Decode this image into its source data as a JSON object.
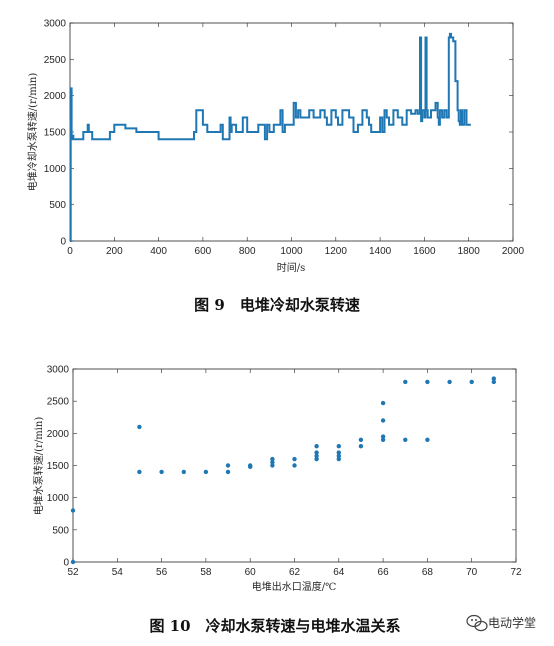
{
  "chart_data": [
    {
      "type": "line",
      "xlabel": "时间/s",
      "ylabel": "电堆冷却水泵转速/(r/min)",
      "xlim": [
        0,
        2000
      ],
      "ylim": [
        0,
        3000
      ],
      "xticks": [
        "0",
        "200",
        "400",
        "600",
        "800",
        "1000",
        "1200",
        "1400",
        "1600",
        "1800",
        "2000"
      ],
      "yticks": [
        "0",
        "500",
        "1000",
        "1500",
        "2000",
        "2500",
        "3000"
      ],
      "color": "#1f77b4",
      "x": [
        0,
        3,
        5,
        7,
        10,
        12,
        15,
        20,
        60,
        80,
        85,
        100,
        140,
        180,
        200,
        250,
        300,
        350,
        400,
        500,
        540,
        560,
        570,
        600,
        620,
        680,
        690,
        720,
        725,
        730,
        750,
        780,
        800,
        850,
        880,
        890,
        900,
        920,
        950,
        960,
        970,
        1000,
        1010,
        1020,
        1030,
        1040,
        1060,
        1080,
        1100,
        1130,
        1150,
        1160,
        1180,
        1200,
        1210,
        1230,
        1260,
        1280,
        1300,
        1320,
        1340,
        1350,
        1360,
        1380,
        1400,
        1410,
        1420,
        1430,
        1440,
        1460,
        1480,
        1500,
        1520,
        1540,
        1560,
        1570,
        1580,
        1585,
        1590,
        1600,
        1605,
        1610,
        1615,
        1630,
        1650,
        1660,
        1665,
        1670,
        1680,
        1690,
        1700,
        1710,
        1715,
        1720,
        1730,
        1740,
        1750,
        1755,
        1760,
        1765,
        1770,
        1780,
        1790,
        1800,
        1810
      ],
      "y": [
        0,
        1650,
        2100,
        1400,
        1400,
        1450,
        1400,
        1400,
        1500,
        1600,
        1500,
        1400,
        1400,
        1500,
        1600,
        1550,
        1500,
        1500,
        1400,
        1400,
        1400,
        1500,
        1800,
        1600,
        1500,
        1600,
        1400,
        1700,
        1500,
        1600,
        1500,
        1700,
        1500,
        1600,
        1400,
        1600,
        1500,
        1600,
        1800,
        1500,
        1600,
        1600,
        1900,
        1700,
        1800,
        1700,
        1700,
        1800,
        1700,
        1800,
        1700,
        1600,
        1800,
        1700,
        1600,
        1800,
        1700,
        1500,
        1600,
        1800,
        1700,
        1600,
        1500,
        1500,
        1700,
        1500,
        1800,
        1700,
        1600,
        1800,
        1700,
        1600,
        1800,
        1750,
        1800,
        1750,
        2800,
        1650,
        1800,
        1700,
        2800,
        1800,
        1700,
        1800,
        1900,
        1700,
        1600,
        1800,
        1700,
        1800,
        1700,
        2800,
        2850,
        2800,
        2750,
        2200,
        1800,
        1650,
        1600,
        1800,
        1600,
        1800,
        1600,
        1600,
        1600
      ]
    },
    {
      "type": "scatter",
      "xlabel": "电堆出水口温度/℃",
      "ylabel": "电堆水泵转速/(r/min)",
      "xlim": [
        52,
        72
      ],
      "ylim": [
        0,
        3000
      ],
      "xticks": [
        "52",
        "54",
        "56",
        "58",
        "60",
        "62",
        "64",
        "66",
        "68",
        "70",
        "72"
      ],
      "yticks": [
        "0",
        "500",
        "1000",
        "1500",
        "2000",
        "2500",
        "3000"
      ],
      "color": "#1f77b4",
      "points": [
        [
          52,
          0
        ],
        [
          52,
          800
        ],
        [
          55,
          2100
        ],
        [
          55,
          1400
        ],
        [
          56,
          1400
        ],
        [
          57,
          1400
        ],
        [
          58,
          1400
        ],
        [
          59,
          1400
        ],
        [
          59,
          1500
        ],
        [
          60,
          1500
        ],
        [
          60,
          1480
        ],
        [
          61,
          1500
        ],
        [
          61,
          1550
        ],
        [
          61,
          1600
        ],
        [
          62,
          1500
        ],
        [
          62,
          1600
        ],
        [
          63,
          1600
        ],
        [
          63,
          1650
        ],
        [
          63,
          1700
        ],
        [
          63,
          1800
        ],
        [
          64,
          1600
        ],
        [
          64,
          1650
        ],
        [
          64,
          1700
        ],
        [
          64,
          1800
        ],
        [
          65,
          1800
        ],
        [
          65,
          1900
        ],
        [
          66,
          1900
        ],
        [
          66,
          1950
        ],
        [
          66,
          2200
        ],
        [
          66,
          2470
        ],
        [
          67,
          1900
        ],
        [
          67,
          2800
        ],
        [
          68,
          1900
        ],
        [
          68,
          2800
        ],
        [
          69,
          2800
        ],
        [
          70,
          2800
        ],
        [
          71,
          2800
        ],
        [
          71,
          2850
        ]
      ]
    }
  ],
  "captions": {
    "fig9": "图 9　电堆冷却水泵转速",
    "fig10": "图 10　冷却水泵转速与电堆水温关系"
  },
  "watermark": {
    "text": "电动学堂",
    "icon": "wechat-icon"
  }
}
